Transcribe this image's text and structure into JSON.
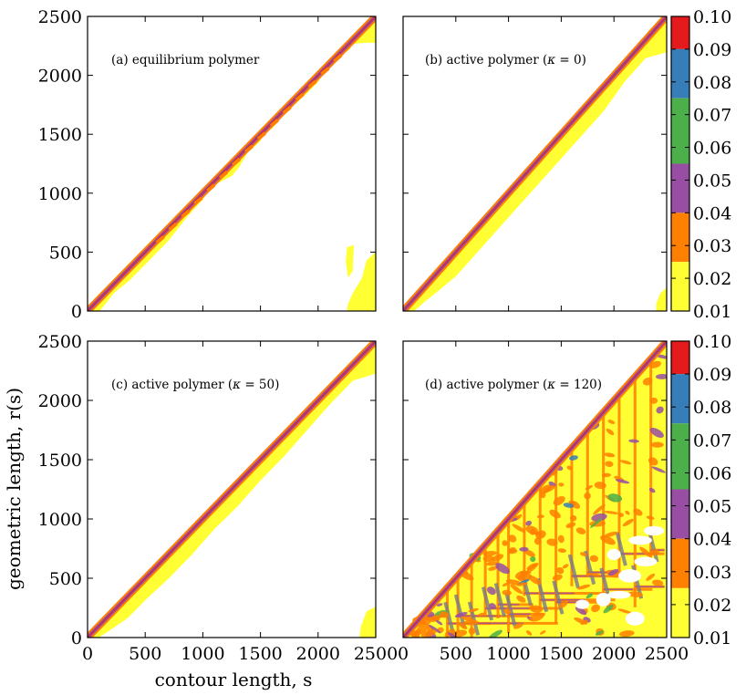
{
  "chart_data": {
    "type": "heatmap",
    "xlabel": "contour length, s",
    "ylabel": "geometric length, r(s)",
    "xlim": [
      0,
      2500
    ],
    "ylim": [
      0,
      2500
    ],
    "x_ticks": [
      0,
      500,
      1000,
      1500,
      2000,
      2500
    ],
    "y_ticks": [
      0,
      500,
      1000,
      1500,
      2000,
      2500
    ],
    "x_tick_labels": [
      "0",
      "500",
      "1000",
      "1500",
      "2000",
      "2500"
    ],
    "y_tick_labels": [
      "0",
      "500",
      "1000",
      "1500",
      "2000",
      "2500"
    ],
    "colorbar": {
      "levels": [
        0.01,
        0.02,
        0.03,
        0.04,
        0.05,
        0.06,
        0.07,
        0.08,
        0.09,
        0.1
      ],
      "labels": [
        "0.10",
        "0.09",
        "0.08",
        "0.07",
        "0.06",
        "0.05",
        "0.04",
        "0.03",
        "0.02",
        "0.01"
      ],
      "bands": [
        {
          "from": 0.09,
          "to": 0.1,
          "color": "#e41a1c"
        },
        {
          "from": 0.075,
          "to": 0.09,
          "color": "#377eb8"
        },
        {
          "from": 0.055,
          "to": 0.075,
          "color": "#4daf4a"
        },
        {
          "from": 0.04,
          "to": 0.055,
          "color": "#984ea3"
        },
        {
          "from": 0.025,
          "to": 0.04,
          "color": "#ff7f00"
        },
        {
          "from": 0.01,
          "to": 0.025,
          "color": "#ffff33"
        }
      ]
    },
    "panels": [
      {
        "label": "(a) equilibrium polymer",
        "title_parts": [
          "(a) equilibrium polymer"
        ],
        "yellow_lower_boundary": [
          [
            0,
            0
          ],
          [
            100,
            0
          ],
          [
            150,
            60
          ],
          [
            230,
            160
          ],
          [
            360,
            260
          ],
          [
            520,
            420
          ],
          [
            700,
            600
          ],
          [
            860,
            800
          ],
          [
            1000,
            950
          ],
          [
            1050,
            1050
          ],
          [
            1150,
            1100
          ],
          [
            1250,
            1150
          ],
          [
            1310,
            1220
          ],
          [
            1400,
            1370
          ],
          [
            1450,
            1400
          ],
          [
            1500,
            1450
          ],
          [
            1520,
            1520
          ],
          [
            1600,
            1550
          ],
          [
            1700,
            1680
          ],
          [
            1800,
            1760
          ],
          [
            1900,
            1850
          ],
          [
            2000,
            1950
          ],
          [
            2070,
            2070
          ],
          [
            2150,
            2150
          ],
          [
            2270,
            2220
          ],
          [
            2300,
            2270
          ],
          [
            2400,
            2280
          ],
          [
            2500,
            2280
          ]
        ],
        "extra_yellow": [
          {
            "name": "bottom-right corner",
            "points": [
              [
                2250,
                0
              ],
              [
                2500,
                0
              ],
              [
                2500,
                500
              ],
              [
                2420,
                430
              ],
              [
                2380,
                280
              ],
              [
                2300,
                150
              ],
              [
                2260,
                60
              ]
            ]
          },
          {
            "name": "mid-right blob",
            "points": [
              [
                2260,
                280
              ],
              [
                2300,
                340
              ],
              [
                2310,
                560
              ],
              [
                2250,
                540
              ],
              [
                2240,
                420
              ]
            ]
          }
        ]
      },
      {
        "label": "(b) active polymer (κ = 0)",
        "title_parts": [
          "(b) active polymer (",
          "κ",
          " = 0)"
        ],
        "yellow_lower_boundary": [
          [
            0,
            0
          ],
          [
            100,
            0
          ],
          [
            200,
            80
          ],
          [
            300,
            150
          ],
          [
            500,
            300
          ],
          [
            700,
            500
          ],
          [
            900,
            700
          ],
          [
            1100,
            900
          ],
          [
            1300,
            1100
          ],
          [
            1500,
            1300
          ],
          [
            1700,
            1500
          ],
          [
            1900,
            1700
          ],
          [
            2100,
            1950
          ],
          [
            2300,
            2150
          ],
          [
            2500,
            2200
          ]
        ],
        "extra_yellow": [
          {
            "name": "bottom-right corner",
            "points": [
              [
                2400,
                0
              ],
              [
                2500,
                0
              ],
              [
                2500,
                200
              ],
              [
                2440,
                150
              ],
              [
                2400,
                60
              ]
            ]
          }
        ]
      },
      {
        "label": "(c) active polymer (κ = 50)",
        "title_parts": [
          "(c) active polymer (",
          "κ",
          " = 50)"
        ],
        "yellow_lower_boundary": [
          [
            0,
            0
          ],
          [
            90,
            0
          ],
          [
            200,
            70
          ],
          [
            350,
            170
          ],
          [
            500,
            320
          ],
          [
            700,
            500
          ],
          [
            900,
            700
          ],
          [
            1100,
            920
          ],
          [
            1300,
            1110
          ],
          [
            1500,
            1330
          ],
          [
            1700,
            1530
          ],
          [
            1900,
            1750
          ],
          [
            2100,
            1970
          ],
          [
            2300,
            2170
          ],
          [
            2500,
            2230
          ]
        ],
        "extra_yellow": [
          {
            "name": "bottom-right corner",
            "points": [
              [
                2360,
                0
              ],
              [
                2500,
                0
              ],
              [
                2500,
                260
              ],
              [
                2420,
                220
              ],
              [
                2370,
                90
              ]
            ]
          }
        ]
      },
      {
        "label": "(d) active polymer (κ = 120)",
        "title_parts": [
          "(d) active polymer (",
          "κ",
          " = 120)"
        ],
        "yellow_lower_boundary": [
          [
            0,
            0
          ],
          [
            2500,
            0
          ],
          [
            2500,
            2500
          ]
        ],
        "extra_yellow": []
      }
    ]
  }
}
